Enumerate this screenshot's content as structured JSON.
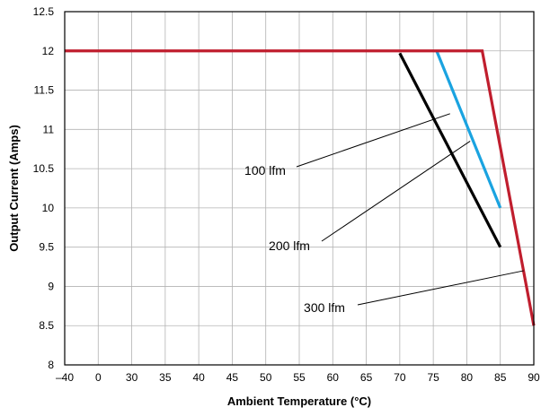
{
  "chart_data": {
    "type": "line",
    "title": "",
    "xlabel": "Ambient Temperature (°C)",
    "ylabel": "Output Current (Amps)",
    "x_tick_labels": [
      "–40",
      "0",
      "30",
      "35",
      "40",
      "45",
      "50",
      "55",
      "60",
      "65",
      "70",
      "75",
      "80",
      "85",
      "90"
    ],
    "ylim": [
      8,
      12.5
    ],
    "y_ticks": [
      8,
      8.5,
      9,
      9.5,
      10,
      10.5,
      11,
      11.5,
      12,
      12.5
    ],
    "y_tick_labels": [
      "8",
      "8.5",
      "9",
      "9.5",
      "10",
      "10.5",
      "11",
      "11.5",
      "12",
      "12.5"
    ],
    "grid": true,
    "series": [
      {
        "color": "#000000",
        "points": [
          [
            70,
            11.97
          ],
          [
            85,
            9.5
          ]
        ]
      },
      {
        "color": "#1aa3e0",
        "points": [
          [
            75.5,
            12
          ],
          [
            85,
            10
          ]
        ]
      },
      {
        "color": "#c01e2e",
        "points": [
          [
            -40,
            12
          ],
          [
            82.3,
            12
          ],
          [
            90,
            8.5
          ]
        ]
      }
    ],
    "annotations": [
      {
        "text": "100 lfm",
        "target_x": 77.5,
        "target_y": 11.2
      },
      {
        "text": "200 lfm",
        "target_x": 80.5,
        "target_y": 10.85
      },
      {
        "text": "300 lfm",
        "target_x": 88.5,
        "target_y": 9.2
      }
    ]
  }
}
